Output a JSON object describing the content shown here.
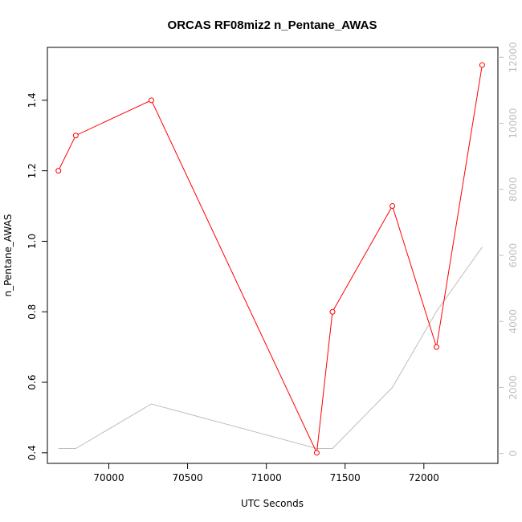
{
  "chart_data": {
    "type": "line",
    "title": "ORCAS RF08miz2 n_Pentane_AWAS",
    "xlabel": "UTC Seconds",
    "ylabel": "n_Pentane_AWAS",
    "xlim": [
      69610,
      72470
    ],
    "ylim": [
      0.37,
      1.55
    ],
    "y2lim": [
      -300,
      12300
    ],
    "x_ticks": [
      70000,
      70500,
      71000,
      71500,
      72000
    ],
    "y_ticks": [
      0.4,
      0.6,
      0.8,
      1.0,
      1.2,
      1.4
    ],
    "y_tick_labels": [
      "0.4",
      "0.6",
      "0.8",
      "1.0",
      "1.2",
      "1.4"
    ],
    "y2_ticks": [
      0,
      2000,
      4000,
      6000,
      8000,
      10000,
      12000
    ],
    "y2_tick_labels": [
      "0",
      "2000",
      "4000",
      "6000",
      "8000",
      "10000",
      "12000"
    ],
    "grid": false,
    "series": [
      {
        "color": "#ff0000",
        "marker": "open-circle",
        "x": [
          69680,
          69790,
          70270,
          71320,
          71420,
          71800,
          72080,
          72370
        ],
        "y": [
          1.2,
          1.3,
          1.4,
          0.4,
          0.8,
          1.1,
          0.7,
          1.5
        ]
      },
      {
        "color": "#bebebe",
        "axis": "right",
        "marker": "none",
        "x": [
          69680,
          69790,
          70270,
          71320,
          71420,
          71800,
          72080,
          72370
        ],
        "y": [
          150,
          150,
          1500,
          150,
          150,
          2000,
          4300,
          6250
        ]
      }
    ]
  }
}
